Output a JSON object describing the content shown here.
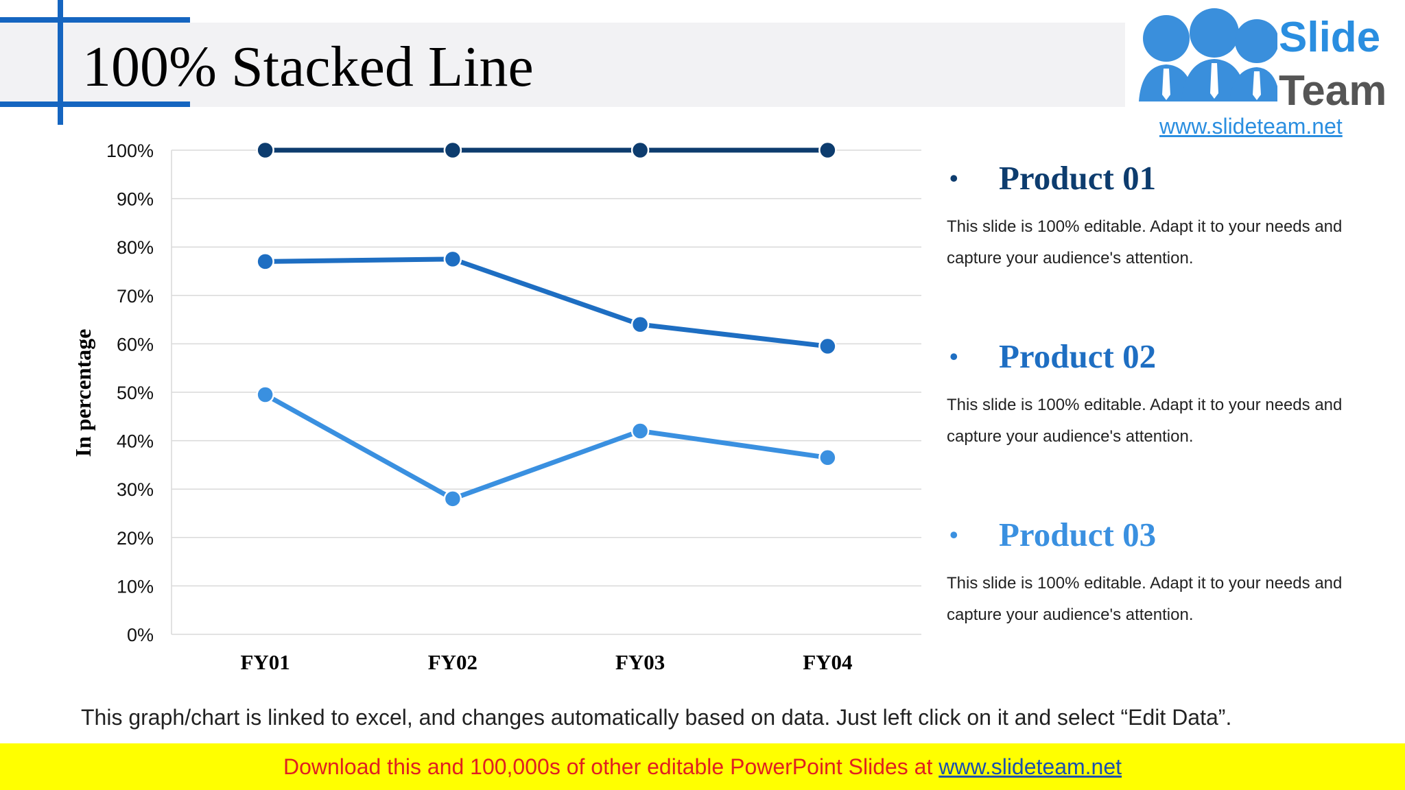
{
  "title": "100% Stacked Line",
  "logo": {
    "word1": "Slide",
    "word2": "Team",
    "url": "www.slideteam.net"
  },
  "colors": {
    "accent": "#1565c0",
    "series_dark": "#0d3c6e",
    "series_mid": "#1e6ec2",
    "series_light": "#3a90e0",
    "footer_bg": "#ffff00",
    "footer_text": "#e02020",
    "footer_link": "#1a4fb0"
  },
  "legend": [
    {
      "label": "Product 01",
      "desc": "This slide is 100% editable. Adapt it to your needs and capture your audience's attention.",
      "color": "#0d3c6e"
    },
    {
      "label": "Product 02",
      "desc": "This slide is 100% editable. Adapt it to your needs and capture your audience's attention.",
      "color": "#1e6ec2"
    },
    {
      "label": "Product 03",
      "desc": "This slide is 100% editable. Adapt it to your needs and capture your audience's attention.",
      "color": "#3a90e0"
    }
  ],
  "note": "This graph/chart is linked to excel, and changes automatically based on data. Just left click on it and select “Edit Data”.",
  "footer": {
    "text": "Download this and 100,000s of other editable PowerPoint Slides at ",
    "link": "www.slideteam.net"
  },
  "chart_data": {
    "type": "line",
    "stacking": "100%",
    "categories": [
      "FY01",
      "FY02",
      "FY03",
      "FY04"
    ],
    "ylabel": "In percentage",
    "xlabel": "",
    "ylim": [
      0,
      100
    ],
    "yticks": [
      "0%",
      "10%",
      "20%",
      "30%",
      "40%",
      "50%",
      "60%",
      "70%",
      "80%",
      "90%",
      "100%"
    ],
    "grid": true,
    "series": [
      {
        "cumulative_values": [
          100,
          100,
          100,
          100
        ],
        "color": "#0d3c6e"
      },
      {
        "cumulative_values": [
          77,
          77.5,
          64,
          59.5
        ],
        "color": "#1e6ec2"
      },
      {
        "cumulative_values": [
          49.5,
          28,
          42,
          36.5
        ],
        "color": "#3a90e0"
      }
    ]
  }
}
